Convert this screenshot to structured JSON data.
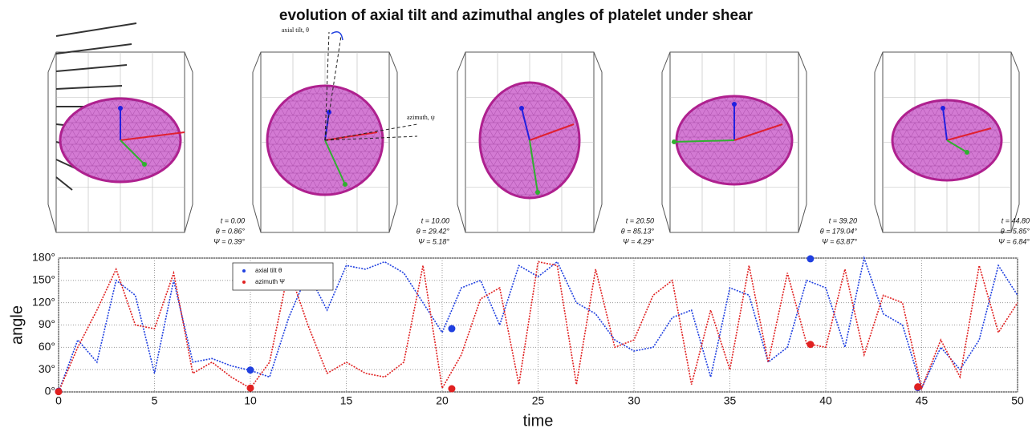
{
  "title": "evolution of axial tilt and azimuthal angles of platelet under shear",
  "panels": [
    {
      "t": "t = 0.00",
      "theta": "θ = 0.86°",
      "psi": "Ψ = 0.39°"
    },
    {
      "t": "t = 10.00",
      "theta": "θ = 29.42°",
      "psi": "Ψ = 5.18°"
    },
    {
      "t": "t = 20.50",
      "theta": "θ = 85.13°",
      "psi": "Ψ = 4.29°"
    },
    {
      "t": "t = 39.20",
      "theta": "θ = 179.04°",
      "psi": "Ψ = 63.87°"
    },
    {
      "t": "t = 44.80",
      "theta": "θ = 5.85°",
      "psi": "Ψ = 6.84°"
    }
  ],
  "annotations": {
    "axial_tilt": "axial tilt, θ",
    "azimuth": "azimuth, ψ"
  },
  "chart_data": {
    "type": "line",
    "xlabel": "time",
    "ylabel": "angle",
    "xlim": [
      0,
      50
    ],
    "xticks": [
      0,
      5,
      10,
      15,
      20,
      25,
      30,
      35,
      40,
      45,
      50
    ],
    "ylim": [
      0,
      180
    ],
    "yticks": [
      {
        "value": 0,
        "label": "0°"
      },
      {
        "value": 30,
        "label": "30°"
      },
      {
        "value": 60,
        "label": "60°"
      },
      {
        "value": 90,
        "label": "90°"
      },
      {
        "value": 120,
        "label": "120°"
      },
      {
        "value": 150,
        "label": "150°"
      },
      {
        "value": 180,
        "label": "180°"
      }
    ],
    "grid": true,
    "x": [
      0,
      1,
      2,
      3,
      4,
      5,
      6,
      7,
      8,
      9,
      10,
      11,
      12,
      13,
      14,
      15,
      16,
      17,
      18,
      19,
      20,
      21,
      22,
      23,
      24,
      25,
      26,
      27,
      28,
      29,
      30,
      31,
      32,
      33,
      34,
      35,
      36,
      37,
      38,
      39,
      40,
      41,
      42,
      43,
      44,
      45,
      46,
      47,
      48,
      49,
      50
    ],
    "series": [
      {
        "name": "axial tilt θ",
        "color": "#2040e0",
        "values": [
          0,
          70,
          40,
          150,
          130,
          25,
          150,
          40,
          45,
          35,
          29,
          20,
          100,
          160,
          110,
          170,
          165,
          175,
          160,
          120,
          80,
          140,
          150,
          90,
          170,
          155,
          175,
          120,
          105,
          70,
          55,
          60,
          100,
          110,
          20,
          140,
          130,
          40,
          60,
          150,
          140,
          60,
          180,
          105,
          90,
          5,
          60,
          30,
          70,
          170,
          130
        ]
      },
      {
        "name": "azimuth Ψ",
        "color": "#e02020",
        "values": [
          0,
          60,
          110,
          165,
          90,
          85,
          160,
          25,
          40,
          20,
          5,
          40,
          165,
          90,
          25,
          40,
          25,
          20,
          40,
          170,
          5,
          50,
          125,
          140,
          10,
          175,
          170,
          10,
          165,
          60,
          70,
          130,
          150,
          10,
          110,
          30,
          170,
          40,
          160,
          65,
          60,
          165,
          50,
          130,
          120,
          5,
          70,
          20,
          170,
          80,
          120
        ]
      }
    ],
    "markers": {
      "x": [
        0,
        10,
        20.5,
        39.2,
        44.8
      ],
      "axial_tilt": [
        0.86,
        29.42,
        85.13,
        179.04,
        5.85
      ],
      "azimuth": [
        0.39,
        5.18,
        4.29,
        63.87,
        6.84
      ]
    },
    "legend": "upper left"
  }
}
